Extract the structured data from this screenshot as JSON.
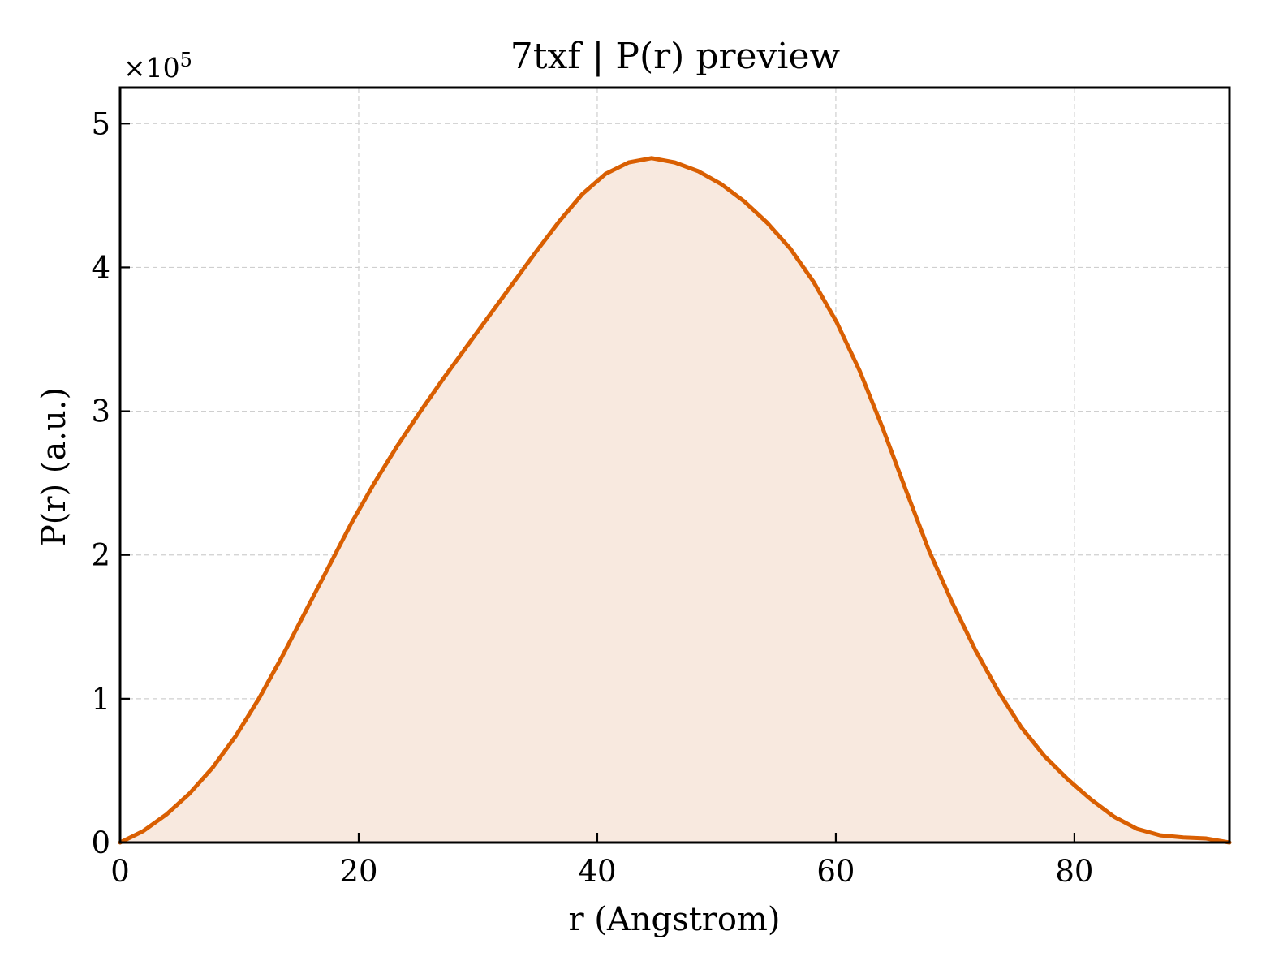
{
  "chart_data": {
    "type": "area",
    "title": "7txf | P(r) preview",
    "xlabel": "r (Angstrom)",
    "ylabel": "P(r) (a.u.)",
    "y_multiplier": {
      "base": "×10",
      "exponent": "5"
    },
    "xlim": [
      0,
      93
    ],
    "ylim": [
      0,
      525000
    ],
    "x_ticks": [
      0,
      20,
      40,
      60,
      80
    ],
    "x_tick_labels": [
      "0",
      "20",
      "40",
      "60",
      "80"
    ],
    "y_ticks": [
      0,
      100000,
      200000,
      300000,
      400000,
      500000
    ],
    "y_tick_labels": [
      "0",
      "1",
      "2",
      "3",
      "4",
      "5"
    ],
    "grid": true,
    "series": [
      {
        "color": "#d95f02",
        "fill_color": "#f8e9df",
        "x": [
          0,
          1.94,
          3.88,
          5.81,
          7.75,
          9.69,
          11.63,
          13.56,
          15.5,
          17.44,
          19.38,
          21.31,
          23.25,
          25.19,
          27.13,
          29.06,
          31.0,
          32.94,
          34.88,
          36.81,
          38.75,
          40.69,
          42.63,
          44.56,
          46.5,
          48.44,
          50.38,
          52.31,
          54.25,
          56.19,
          58.13,
          60.06,
          62.0,
          63.94,
          65.88,
          67.81,
          69.75,
          71.69,
          73.63,
          75.56,
          77.5,
          79.44,
          81.38,
          83.31,
          85.25,
          87.19,
          89.13,
          91.06,
          93.0
        ],
        "y": [
          0,
          8000,
          19500,
          34000,
          52000,
          74000,
          100000,
          129000,
          160000,
          191000,
          222000,
          250000,
          276000,
          300000,
          323000,
          345000,
          367000,
          389000,
          411000,
          432000,
          451000,
          465000,
          473000,
          476000,
          473000,
          467000,
          458000,
          446000,
          431000,
          413000,
          390000,
          362000,
          328000,
          288000,
          245000,
          203000,
          167000,
          134000,
          105000,
          80000,
          60000,
          44000,
          30000,
          18000,
          9500,
          5000,
          3500,
          2800,
          0
        ]
      }
    ]
  }
}
